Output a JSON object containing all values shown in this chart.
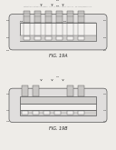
{
  "bg_color": "#eeece8",
  "header_color": "#999999",
  "line_color": "#555555",
  "fig1_label": "FIG. 19A",
  "fig2_label": "FIG. 19B",
  "body_fill": "#e0dedd",
  "inner_fill": "#d0cecc",
  "pillar_fill": "#c8c6c4",
  "white_fill": "#f2f0ee",
  "dark_fill": "#b0aeac"
}
